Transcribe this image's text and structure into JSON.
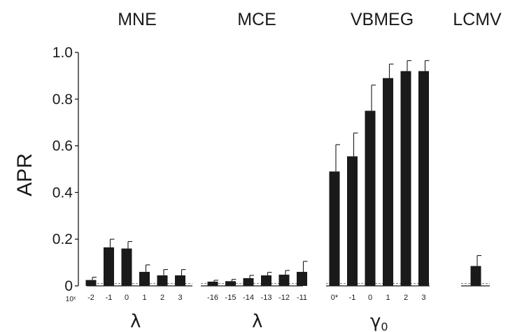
{
  "chart_data": {
    "type": "bar",
    "ylabel": "APR",
    "ylim": [
      0,
      1.0
    ],
    "yticks": [
      {
        "value": 0,
        "label": "0"
      },
      {
        "value": 0.2,
        "label": "0.2"
      },
      {
        "value": 0.4,
        "label": "0.4"
      },
      {
        "value": 0.6,
        "label": "0.6"
      },
      {
        "value": 0.8,
        "label": "0.8"
      },
      {
        "value": 1.0,
        "label": "1.0"
      }
    ],
    "chance_level": 0.01,
    "x_prefix": "10ˣ",
    "panels": [
      {
        "title": "MNE",
        "xlabel": "λ",
        "xlabel_sub": "",
        "categories": [
          "-2",
          "-1",
          "0",
          "1",
          "2",
          "3"
        ],
        "values": [
          0.025,
          0.165,
          0.16,
          0.06,
          0.045,
          0.045
        ],
        "errors": [
          0.012,
          0.035,
          0.03,
          0.03,
          0.025,
          0.025
        ]
      },
      {
        "title": "MCE",
        "xlabel": "λ",
        "xlabel_sub": "",
        "categories": [
          "-16",
          "-15",
          "-14",
          "-13",
          "-12",
          "-11"
        ],
        "values": [
          0.018,
          0.02,
          0.033,
          0.045,
          0.048,
          0.06
        ],
        "errors": [
          0.006,
          0.008,
          0.012,
          0.013,
          0.018,
          0.045
        ]
      },
      {
        "title": "VBMEG",
        "xlabel": "γ",
        "xlabel_sub": "0",
        "categories": [
          "0*",
          "-1",
          "0",
          "1",
          "2",
          "3"
        ],
        "values": [
          0.49,
          0.555,
          0.75,
          0.89,
          0.92,
          0.92
        ],
        "errors": [
          0.115,
          0.1,
          0.11,
          0.06,
          0.045,
          0.045
        ]
      },
      {
        "title": "LCMV",
        "xlabel": "",
        "xlabel_sub": "",
        "categories": [
          ""
        ],
        "values": [
          0.085
        ],
        "errors": [
          0.045
        ]
      }
    ]
  }
}
